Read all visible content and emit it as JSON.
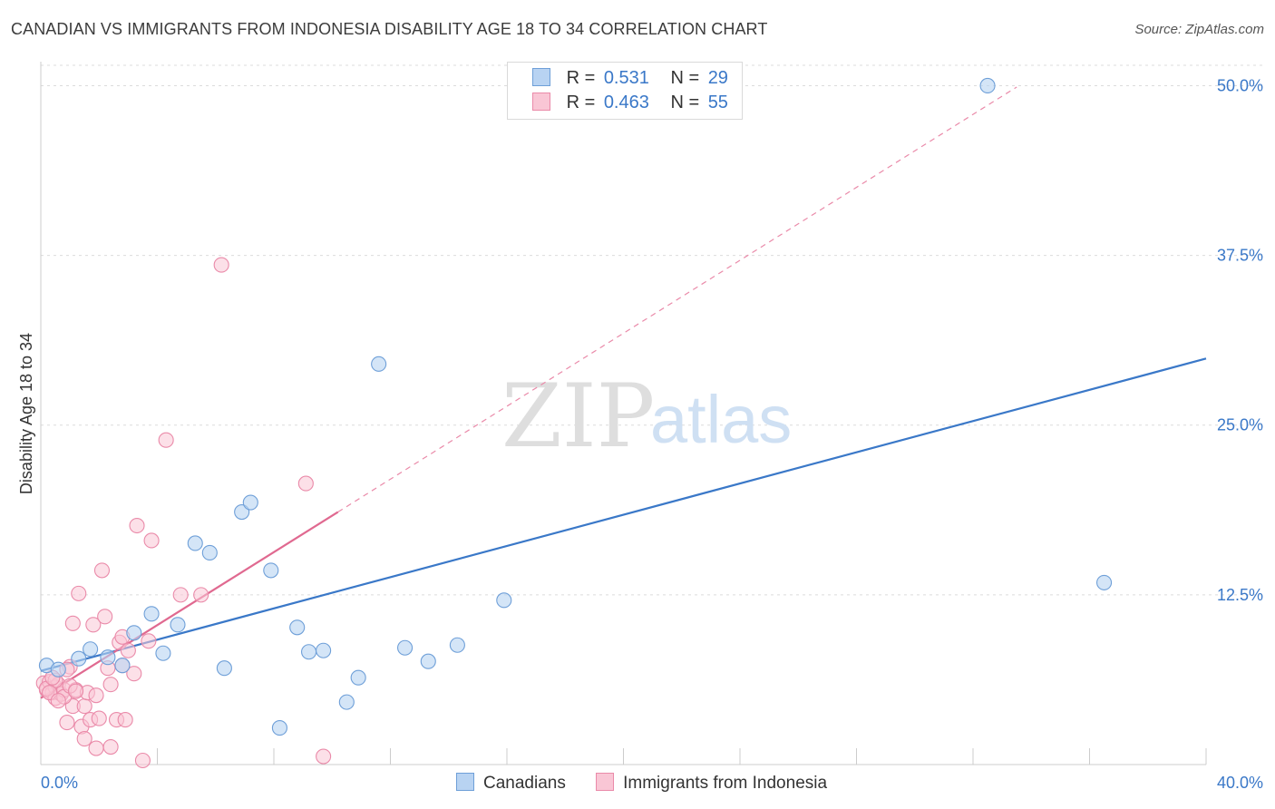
{
  "title": "CANADIAN VS IMMIGRANTS FROM INDONESIA DISABILITY AGE 18 TO 34 CORRELATION CHART",
  "source": "Source: ZipAtlas.com",
  "watermark": {
    "zip": "ZIP",
    "atlas": "atlas"
  },
  "legend_stats": [
    {
      "r_label": "R =",
      "r_value": "0.531",
      "n_label": "N =",
      "n_value": "29"
    },
    {
      "r_label": "R =",
      "r_value": "0.463",
      "n_label": "N =",
      "n_value": "55"
    }
  ],
  "colors": {
    "blue": "#3a78c8",
    "blue_fill": "#b8d3f2",
    "blue_stroke": "#6e9fd8",
    "pink": "#e06990",
    "pink_fill": "#f9c6d5",
    "pink_stroke": "#ea8aa9",
    "grid": "#dcdcdc"
  },
  "chart_data": {
    "type": "scatter",
    "title": "CANADIAN VS IMMIGRANTS FROM INDONESIA DISABILITY AGE 18 TO 34 CORRELATION CHART",
    "xlabel": "",
    "ylabel": "Disability Age 18 to 34",
    "xlim": [
      0,
      40
    ],
    "ylim": [
      0,
      51.5
    ],
    "x_tick_labels": [
      "0.0%",
      "40.0%"
    ],
    "y_ticks": [
      12.5,
      25.0,
      37.5,
      50.0
    ],
    "y_tick_labels": [
      "12.5%",
      "25.0%",
      "37.5%",
      "50.0%"
    ],
    "grid": true,
    "series": [
      {
        "name": "Canadians",
        "color": "#3a78c8",
        "points": [
          [
            0.2,
            7.3
          ],
          [
            0.6,
            7.0
          ],
          [
            1.3,
            7.8
          ],
          [
            1.7,
            8.5
          ],
          [
            2.3,
            7.9
          ],
          [
            2.8,
            7.3
          ],
          [
            3.2,
            9.7
          ],
          [
            3.8,
            11.1
          ],
          [
            4.2,
            8.2
          ],
          [
            4.7,
            10.3
          ],
          [
            5.3,
            16.3
          ],
          [
            5.8,
            15.6
          ],
          [
            6.3,
            7.1
          ],
          [
            6.9,
            18.6
          ],
          [
            7.2,
            19.3
          ],
          [
            7.9,
            14.3
          ],
          [
            8.2,
            2.7
          ],
          [
            8.8,
            10.1
          ],
          [
            9.2,
            8.3
          ],
          [
            9.7,
            8.4
          ],
          [
            10.5,
            4.6
          ],
          [
            10.9,
            6.4
          ],
          [
            11.6,
            29.5
          ],
          [
            12.5,
            8.6
          ],
          [
            13.3,
            7.6
          ],
          [
            14.3,
            8.8
          ],
          [
            15.9,
            12.1
          ],
          [
            32.5,
            50.0
          ],
          [
            36.5,
            13.4
          ]
        ],
        "trendline": {
          "x": [
            0,
            40
          ],
          "y": [
            6.9,
            29.9
          ],
          "style": "solid"
        }
      },
      {
        "name": "Immigrants from Indonesia",
        "color": "#e06990",
        "points": [
          [
            0.1,
            6.0
          ],
          [
            0.2,
            5.5
          ],
          [
            0.3,
            6.1
          ],
          [
            0.4,
            5.3
          ],
          [
            0.5,
            5.7
          ],
          [
            0.5,
            4.9
          ],
          [
            0.6,
            5.9
          ],
          [
            0.7,
            5.2
          ],
          [
            0.8,
            5.5
          ],
          [
            0.9,
            3.1
          ],
          [
            1.0,
            7.2
          ],
          [
            1.1,
            4.3
          ],
          [
            1.1,
            10.4
          ],
          [
            1.2,
            5.5
          ],
          [
            1.3,
            12.6
          ],
          [
            1.4,
            2.8
          ],
          [
            1.5,
            4.3
          ],
          [
            1.5,
            1.9
          ],
          [
            1.6,
            5.3
          ],
          [
            1.7,
            3.3
          ],
          [
            1.8,
            10.3
          ],
          [
            1.9,
            5.1
          ],
          [
            2.0,
            3.4
          ],
          [
            1.9,
            1.2
          ],
          [
            2.1,
            14.3
          ],
          [
            2.2,
            10.9
          ],
          [
            2.3,
            7.1
          ],
          [
            2.4,
            5.9
          ],
          [
            2.4,
            1.3
          ],
          [
            2.6,
            3.3
          ],
          [
            2.7,
            9.0
          ],
          [
            2.8,
            7.3
          ],
          [
            2.8,
            9.4
          ],
          [
            2.9,
            3.3
          ],
          [
            3.0,
            8.4
          ],
          [
            3.2,
            6.7
          ],
          [
            3.3,
            17.6
          ],
          [
            3.5,
            0.3
          ],
          [
            3.7,
            9.1
          ],
          [
            3.8,
            16.5
          ],
          [
            4.3,
            23.9
          ],
          [
            4.8,
            12.5
          ],
          [
            5.5,
            12.5
          ],
          [
            6.2,
            36.8
          ],
          [
            9.1,
            20.7
          ],
          [
            9.7,
            0.6
          ],
          [
            0.2,
            5.6
          ],
          [
            0.5,
            6.2
          ],
          [
            0.8,
            5.0
          ],
          [
            1.0,
            5.8
          ],
          [
            0.3,
            5.3
          ],
          [
            0.6,
            4.7
          ],
          [
            0.9,
            7.0
          ],
          [
            1.2,
            5.4
          ],
          [
            0.4,
            6.4
          ]
        ],
        "trendline": {
          "x": [
            0,
            10.2
          ],
          "y": [
            4.9,
            18.6
          ],
          "style": "solid",
          "extended": {
            "x": [
              10.2,
              33.5
            ],
            "y": [
              18.6,
              49.9
            ],
            "style": "dashed"
          }
        }
      }
    ]
  },
  "bottom_legend": [
    {
      "label": "Canadians"
    },
    {
      "label": "Immigrants from Indonesia"
    }
  ]
}
